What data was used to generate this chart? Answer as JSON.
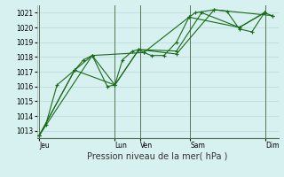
{
  "background_color": "#d7f0f0",
  "grid_color": "#b8d8d8",
  "line_color": "#1a6b1a",
  "marker_color": "#1a6b1a",
  "xlabel": "Pression niveau de la mer( hPa )",
  "ylim": [
    1012.5,
    1021.5
  ],
  "yticks": [
    1013,
    1014,
    1015,
    1016,
    1017,
    1018,
    1019,
    1020,
    1021
  ],
  "day_positions": [
    0.0,
    3.0,
    4.0,
    6.0,
    9.0
  ],
  "day_labels": [
    "Jeu",
    "Lun",
    "Ven",
    "Sam",
    "Dim"
  ],
  "xlim": [
    -0.1,
    9.5
  ],
  "vline_color": "#557755",
  "series": [
    [
      [
        0.0,
        1012.7
      ],
      [
        0.25,
        1013.4
      ],
      [
        0.7,
        1016.1
      ],
      [
        1.4,
        1017.1
      ],
      [
        1.75,
        1017.8
      ],
      [
        2.1,
        1018.1
      ],
      [
        2.7,
        1016.0
      ],
      [
        3.0,
        1016.1
      ],
      [
        3.3,
        1017.8
      ],
      [
        3.7,
        1018.4
      ],
      [
        3.95,
        1018.5
      ],
      [
        4.15,
        1018.3
      ],
      [
        4.45,
        1018.1
      ],
      [
        4.95,
        1018.1
      ],
      [
        5.45,
        1019.0
      ],
      [
        5.95,
        1020.7
      ],
      [
        6.2,
        1021.0
      ],
      [
        6.95,
        1021.2
      ],
      [
        7.45,
        1021.1
      ],
      [
        7.95,
        1019.9
      ],
      [
        8.45,
        1019.7
      ],
      [
        8.95,
        1021.0
      ],
      [
        9.25,
        1020.8
      ]
    ],
    [
      [
        0.0,
        1012.7
      ],
      [
        1.4,
        1017.1
      ],
      [
        2.1,
        1018.1
      ],
      [
        3.0,
        1016.1
      ],
      [
        3.95,
        1018.5
      ],
      [
        5.45,
        1018.4
      ],
      [
        6.45,
        1021.0
      ],
      [
        7.95,
        1020.0
      ],
      [
        8.95,
        1021.0
      ]
    ],
    [
      [
        0.0,
        1012.7
      ],
      [
        1.4,
        1017.1
      ],
      [
        3.0,
        1016.1
      ],
      [
        3.95,
        1018.5
      ],
      [
        5.45,
        1018.2
      ],
      [
        6.95,
        1021.2
      ],
      [
        9.25,
        1020.8
      ]
    ],
    [
      [
        0.0,
        1012.7
      ],
      [
        2.1,
        1018.1
      ],
      [
        4.15,
        1018.3
      ],
      [
        5.95,
        1020.7
      ],
      [
        7.95,
        1020.0
      ],
      [
        8.95,
        1021.0
      ]
    ]
  ]
}
